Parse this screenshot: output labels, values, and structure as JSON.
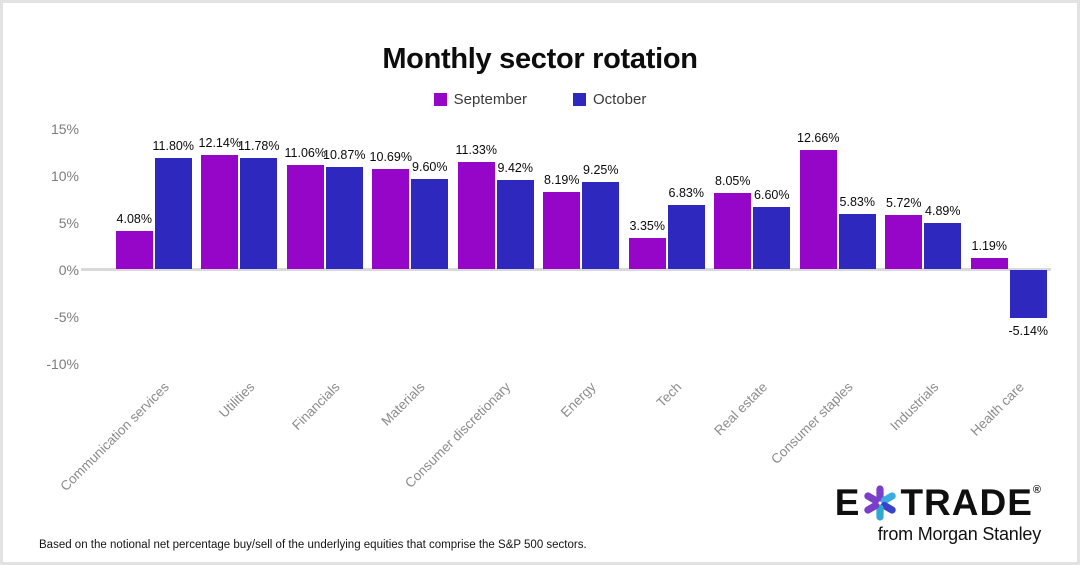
{
  "title": "Monthly sector rotation",
  "legend": [
    {
      "label": "September",
      "color": "#9606C8"
    },
    {
      "label": "October",
      "color": "#2E28BE"
    }
  ],
  "footnote": "Based on the notional net percentage buy/sell of the underlying equities that comprise the S&P 500 sectors.",
  "brand": {
    "e": "E",
    "trade": "TRADE",
    "registered": "®",
    "tagline": "from Morgan Stanley",
    "asterisk_colors": {
      "purple": "#7B3EC8",
      "cyan": "#38ADE3",
      "blue": "#3943C9",
      "teal": "#2FA9CE"
    }
  },
  "chart_data": {
    "type": "bar",
    "title": "Monthly sector rotation",
    "categories": [
      "Communication services",
      "Utilities",
      "Financials",
      "Materials",
      "Consumer discretionary",
      "Energy",
      "Tech",
      "Real estate",
      "Consumer staples",
      "Industrials",
      "Health care"
    ],
    "series": [
      {
        "name": "September",
        "color": "#9606C8",
        "values": [
          4.08,
          12.14,
          11.06,
          10.69,
          11.33,
          8.19,
          3.35,
          8.05,
          12.66,
          5.72,
          1.19
        ]
      },
      {
        "name": "October",
        "color": "#2E28BE",
        "values": [
          11.8,
          11.78,
          10.87,
          9.6,
          9.42,
          9.25,
          6.83,
          6.6,
          5.83,
          4.89,
          -5.14
        ]
      }
    ],
    "value_label_format": "0.00%",
    "ylim": [
      -10,
      15
    ],
    "yticks": [
      15,
      10,
      5,
      0,
      -5,
      -10
    ],
    "ytick_suffix": "%",
    "grid": false,
    "legend_position": "top",
    "axis_line_color": "#D9D9D9",
    "xlabel": "",
    "ylabel": ""
  }
}
